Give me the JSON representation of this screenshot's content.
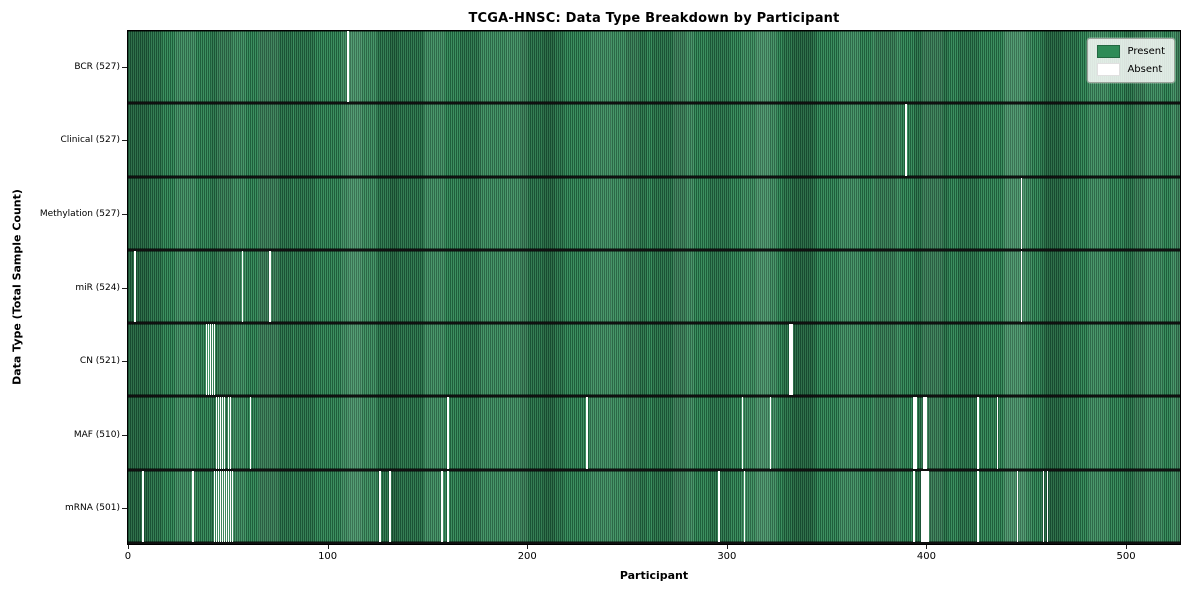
{
  "chart_data": {
    "type": "heatmap",
    "title": "TCGA-HNSC: Data Type Breakdown by Participant",
    "xlabel": "Participant",
    "ylabel": "Data Type (Total Sample Count)",
    "x_ticks": [
      0,
      100,
      200,
      300,
      400,
      500
    ],
    "x_range": [
      -0.5,
      527.5
    ],
    "n_participants": 528,
    "grid": false,
    "legend": {
      "position": "upper right",
      "present_label": "Present",
      "absent_label": "Absent"
    },
    "colors": {
      "present": "#2e8b57",
      "present_edge_dark": "#1f5f3c",
      "present_fill_light": "#3c8f60",
      "absent": "#ffffff",
      "legend_bg": "#eef2ee",
      "legend_border": "#9aa39a"
    },
    "rows": [
      {
        "label": "BCR (527)",
        "data_type": "BCR",
        "sample_count": 527,
        "absent_participants": [
          110
        ]
      },
      {
        "label": "Clinical (527)",
        "data_type": "Clinical",
        "sample_count": 527,
        "absent_participants": [
          390
        ]
      },
      {
        "label": "Methylation (527)",
        "data_type": "Methylation",
        "sample_count": 527,
        "absent_participants": [
          448
        ]
      },
      {
        "label": "miR (524)",
        "data_type": "miR",
        "sample_count": 524,
        "absent_participants": [
          3,
          57,
          71,
          448
        ]
      },
      {
        "label": "CN (521)",
        "data_type": "CN",
        "sample_count": 521,
        "absent_participants": [
          39,
          40,
          41,
          42,
          43,
          332,
          333
        ]
      },
      {
        "label": "MAF (510)",
        "data_type": "MAF",
        "sample_count": 510,
        "absent_participants": [
          44,
          45,
          46,
          47,
          48,
          50,
          51,
          61,
          160,
          230,
          308,
          322,
          394,
          395,
          399,
          400,
          426,
          436
        ]
      },
      {
        "label": "mRNA (501)",
        "data_type": "mRNA",
        "sample_count": 501,
        "absent_participants": [
          7,
          32,
          43,
          44,
          45,
          46,
          47,
          48,
          49,
          50,
          51,
          52,
          126,
          131,
          157,
          160,
          296,
          309,
          394,
          398,
          399,
          400,
          401,
          426,
          446,
          459,
          461
        ]
      }
    ]
  }
}
